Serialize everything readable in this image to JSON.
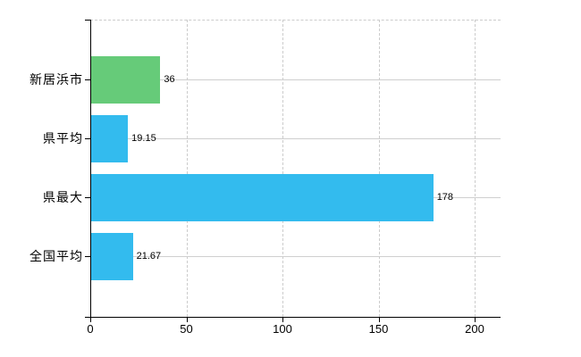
{
  "chart_data": {
    "type": "bar",
    "orientation": "horizontal",
    "title": "",
    "xlabel": "",
    "ylabel": "",
    "categories": [
      "新居浜市",
      "県平均",
      "県最大",
      "全国平均"
    ],
    "values": [
      36,
      19.15,
      178,
      21.67
    ],
    "value_labels": [
      "36",
      "19.15",
      "178",
      "21.67"
    ],
    "bar_colors": [
      "#66cb79",
      "#33bbee",
      "#33bbee",
      "#33bbee"
    ],
    "x_ticks": [
      0,
      50,
      100,
      150,
      200
    ],
    "x_tick_labels": [
      "0",
      "50",
      "100",
      "150",
      "200"
    ],
    "xlim": [
      0,
      213.5
    ],
    "grid": true,
    "legend_position": "none"
  },
  "colors": {
    "bar_green": "#66cb79",
    "bar_blue": "#33bbee",
    "grid_solid": "#cfcfcf",
    "grid_dashed": "#cccccc",
    "axis": "#000000",
    "text": "#000000",
    "background": "#ffffff"
  }
}
